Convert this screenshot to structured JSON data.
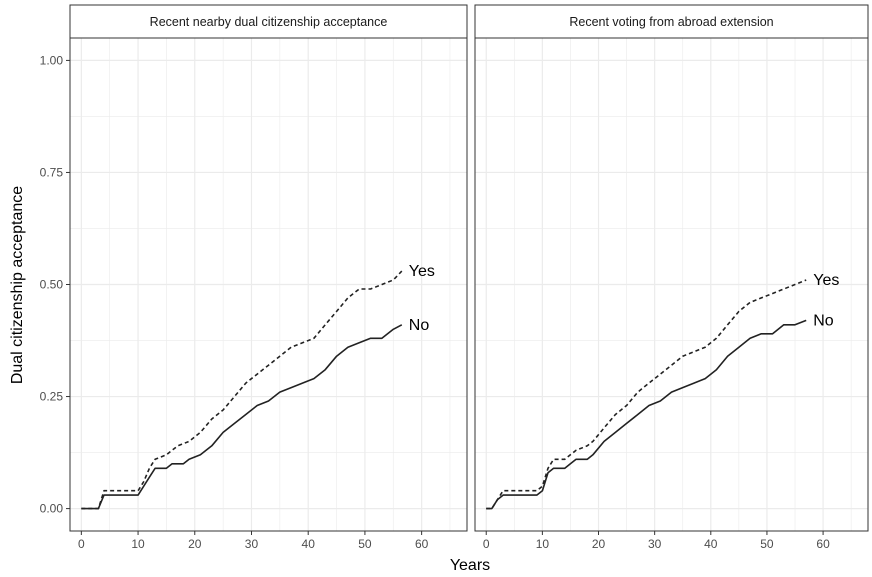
{
  "colors": {
    "grid": "#ebebeb",
    "panel_border": "#333333",
    "strip_bg": "#ffffff",
    "line": "#222222"
  },
  "chart_data": {
    "type": "line",
    "xlabel": "Years",
    "ylabel": "Dual citizenship acceptance",
    "xlim": [
      -2,
      68
    ],
    "ylim": [
      -0.05,
      1.05
    ],
    "x_ticks": [
      0,
      10,
      20,
      30,
      40,
      50,
      60
    ],
    "y_ticks": [
      0,
      0.25,
      0.5,
      0.75,
      1
    ],
    "y_tick_labels": [
      "0.00",
      "0.25",
      "0.50",
      "0.75",
      "1.00"
    ],
    "grid": true,
    "legend": "none (direct labels at line ends)",
    "panels": [
      {
        "title": "Recent nearby dual citizenship acceptance",
        "series": [
          {
            "name": "Yes",
            "style": "dashed",
            "points": [
              [
                0,
                0
              ],
              [
                3,
                0
              ],
              [
                4,
                0.04
              ],
              [
                10,
                0.04
              ],
              [
                11,
                0.06
              ],
              [
                12,
                0.09
              ],
              [
                13,
                0.11
              ],
              [
                15,
                0.12
              ],
              [
                16,
                0.13
              ],
              [
                17,
                0.14
              ],
              [
                19,
                0.15
              ],
              [
                21,
                0.17
              ],
              [
                23,
                0.2
              ],
              [
                25,
                0.22
              ],
              [
                27,
                0.25
              ],
              [
                29,
                0.28
              ],
              [
                31,
                0.3
              ],
              [
                33,
                0.32
              ],
              [
                35,
                0.34
              ],
              [
                37,
                0.36
              ],
              [
                39,
                0.37
              ],
              [
                41,
                0.38
              ],
              [
                43,
                0.41
              ],
              [
                45,
                0.44
              ],
              [
                47,
                0.47
              ],
              [
                49,
                0.49
              ],
              [
                51,
                0.49
              ],
              [
                53,
                0.5
              ],
              [
                55,
                0.51
              ],
              [
                56.5,
                0.53
              ]
            ]
          },
          {
            "name": "No",
            "style": "solid",
            "points": [
              [
                0,
                0
              ],
              [
                3,
                0
              ],
              [
                4,
                0.03
              ],
              [
                10,
                0.03
              ],
              [
                11,
                0.05
              ],
              [
                12,
                0.07
              ],
              [
                13,
                0.09
              ],
              [
                15,
                0.09
              ],
              [
                16,
                0.1
              ],
              [
                18,
                0.1
              ],
              [
                19,
                0.11
              ],
              [
                21,
                0.12
              ],
              [
                23,
                0.14
              ],
              [
                25,
                0.17
              ],
              [
                27,
                0.19
              ],
              [
                29,
                0.21
              ],
              [
                31,
                0.23
              ],
              [
                33,
                0.24
              ],
              [
                35,
                0.26
              ],
              [
                37,
                0.27
              ],
              [
                39,
                0.28
              ],
              [
                41,
                0.29
              ],
              [
                43,
                0.31
              ],
              [
                45,
                0.34
              ],
              [
                47,
                0.36
              ],
              [
                49,
                0.37
              ],
              [
                51,
                0.38
              ],
              [
                53,
                0.38
              ],
              [
                55,
                0.4
              ],
              [
                56.5,
                0.41
              ]
            ]
          }
        ]
      },
      {
        "title": "Recent voting from abroad extension",
        "series": [
          {
            "name": "Yes",
            "style": "dashed",
            "points": [
              [
                0,
                0
              ],
              [
                1,
                0
              ],
              [
                2,
                0.02
              ],
              [
                3,
                0.04
              ],
              [
                9,
                0.04
              ],
              [
                10,
                0.05
              ],
              [
                11,
                0.09
              ],
              [
                12,
                0.11
              ],
              [
                14,
                0.11
              ],
              [
                15,
                0.12
              ],
              [
                16,
                0.13
              ],
              [
                18,
                0.14
              ],
              [
                19,
                0.15
              ],
              [
                21,
                0.18
              ],
              [
                23,
                0.21
              ],
              [
                25,
                0.23
              ],
              [
                27,
                0.26
              ],
              [
                29,
                0.28
              ],
              [
                31,
                0.3
              ],
              [
                33,
                0.32
              ],
              [
                35,
                0.34
              ],
              [
                37,
                0.35
              ],
              [
                39,
                0.36
              ],
              [
                41,
                0.38
              ],
              [
                43,
                0.41
              ],
              [
                45,
                0.44
              ],
              [
                47,
                0.46
              ],
              [
                49,
                0.47
              ],
              [
                51,
                0.48
              ],
              [
                53,
                0.49
              ],
              [
                55,
                0.5
              ],
              [
                57,
                0.51
              ]
            ]
          },
          {
            "name": "No",
            "style": "solid",
            "points": [
              [
                0,
                0
              ],
              [
                1,
                0
              ],
              [
                2,
                0.02
              ],
              [
                3,
                0.03
              ],
              [
                9,
                0.03
              ],
              [
                10,
                0.04
              ],
              [
                11,
                0.08
              ],
              [
                12,
                0.09
              ],
              [
                14,
                0.09
              ],
              [
                15,
                0.1
              ],
              [
                16,
                0.11
              ],
              [
                18,
                0.11
              ],
              [
                19,
                0.12
              ],
              [
                21,
                0.15
              ],
              [
                23,
                0.17
              ],
              [
                25,
                0.19
              ],
              [
                27,
                0.21
              ],
              [
                29,
                0.23
              ],
              [
                31,
                0.24
              ],
              [
                33,
                0.26
              ],
              [
                35,
                0.27
              ],
              [
                37,
                0.28
              ],
              [
                39,
                0.29
              ],
              [
                41,
                0.31
              ],
              [
                43,
                0.34
              ],
              [
                45,
                0.36
              ],
              [
                47,
                0.38
              ],
              [
                49,
                0.39
              ],
              [
                51,
                0.39
              ],
              [
                53,
                0.41
              ],
              [
                55,
                0.41
              ],
              [
                57,
                0.42
              ]
            ]
          }
        ]
      }
    ]
  }
}
